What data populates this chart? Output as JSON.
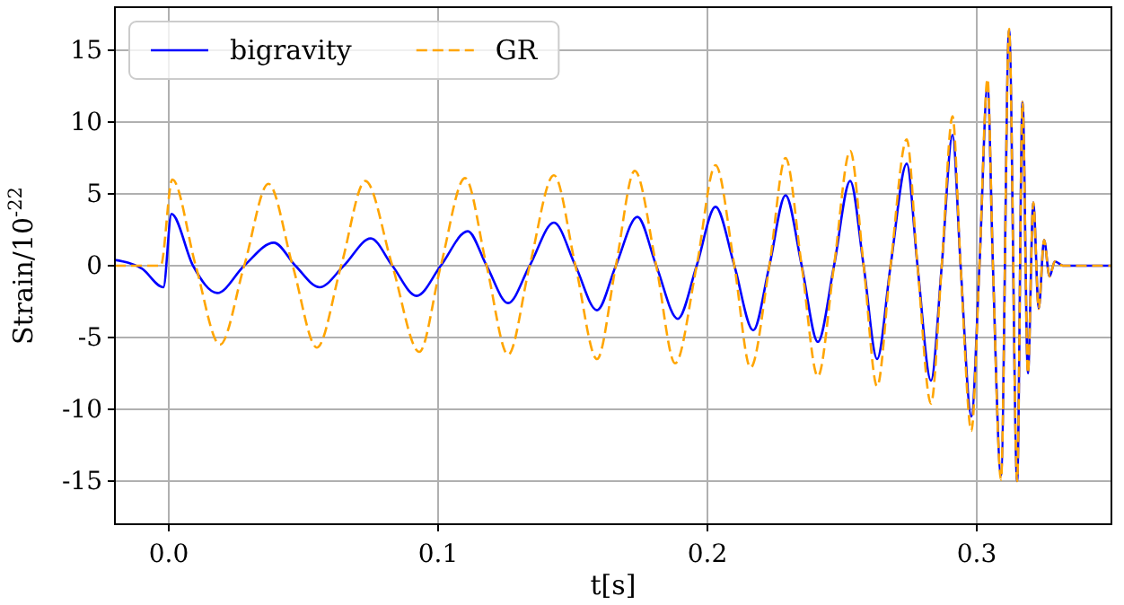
{
  "chart_data": {
    "type": "line",
    "xlabel": "t[s]",
    "ylabel": "Strain/10$^{-22}$",
    "xlim": [
      -0.02,
      0.35
    ],
    "ylim": [
      -18,
      18
    ],
    "xticks": [
      {
        "value": 0,
        "label": "0.0"
      },
      0.1,
      0.2,
      0.3
    ],
    "yticks": [
      -15,
      -10,
      -5,
      0,
      5,
      10,
      15
    ],
    "grid": true,
    "legend": "top left",
    "series": [
      {
        "name": "bigravity",
        "color": "#0000ff",
        "line_style": "solid",
        "x": [
          -0.02,
          -0.01,
          -0.002,
          0.001,
          0.009,
          0.018,
          0.028,
          0.039,
          0.047,
          0.056,
          0.065,
          0.075,
          0.083,
          0.092,
          0.101,
          0.111,
          0.118,
          0.126,
          0.134,
          0.143,
          0.151,
          0.159,
          0.166,
          0.174,
          0.181,
          0.189,
          0.196,
          0.203,
          0.21,
          0.217,
          0.223,
          0.229,
          0.235,
          0.241,
          0.247,
          0.253,
          0.258,
          0.263,
          0.268,
          0.274,
          0.278,
          0.283,
          0.287,
          0.291,
          0.294,
          0.298,
          0.301,
          0.304,
          0.306,
          0.309,
          0.312,
          0.315,
          0.317,
          0.319,
          0.321,
          0.323,
          0.325,
          0.327,
          0.329,
          0.332,
          0.35
        ],
        "values": [
          0.4,
          -0.2,
          -1.5,
          3.6,
          0,
          -1.9,
          0,
          1.6,
          0,
          -1.5,
          0,
          1.9,
          0,
          -2.1,
          0,
          2.4,
          0,
          -2.6,
          0,
          3.0,
          0,
          -3.1,
          0,
          3.4,
          0,
          -3.7,
          0,
          4.1,
          0,
          -4.5,
          0,
          4.9,
          0,
          -5.3,
          0,
          5.9,
          0,
          -6.5,
          0,
          7.1,
          0,
          -8,
          0,
          9.1,
          0,
          -10.5,
          0,
          12.5,
          0,
          -14.6,
          16.4,
          -15,
          11.4,
          -7.5,
          4.4,
          -3,
          1.8,
          -0.75,
          0.3,
          0,
          0
        ]
      },
      {
        "name": "GR",
        "color": "#ffa500",
        "line_style": "dashed",
        "x": [
          -0.02,
          -0.003,
          0.0013,
          0.01,
          0.019,
          0.028,
          0.037,
          0.046,
          0.055,
          0.064,
          0.073,
          0.083,
          0.093,
          0.101,
          0.11,
          0.118,
          0.126,
          0.134,
          0.143,
          0.151,
          0.159,
          0.166,
          0.173,
          0.181,
          0.188,
          0.196,
          0.203,
          0.21,
          0.216,
          0.223,
          0.229,
          0.235,
          0.241,
          0.247,
          0.253,
          0.258,
          0.263,
          0.268,
          0.274,
          0.278,
          0.283,
          0.287,
          0.291,
          0.294,
          0.298,
          0.301,
          0.304,
          0.306,
          0.309,
          0.312,
          0.315,
          0.317,
          0.319,
          0.321,
          0.323,
          0.325,
          0.327,
          0.329,
          0.332,
          0.35
        ],
        "values": [
          0,
          0,
          6.0,
          0,
          -5.5,
          0,
          5.7,
          0,
          -5.7,
          0,
          5.9,
          0,
          -6,
          0,
          6.1,
          0,
          -6.2,
          0,
          6.3,
          0,
          -6.5,
          0,
          6.6,
          0,
          -6.8,
          0,
          7.0,
          0,
          -7.1,
          0,
          7.5,
          0,
          -7.7,
          0,
          8.0,
          0,
          -8.4,
          0,
          8.8,
          0,
          -9.6,
          0,
          10.4,
          0,
          -11.5,
          0,
          13,
          0,
          -14.9,
          16.5,
          -15,
          11.4,
          -7.5,
          4.4,
          -3,
          1.8,
          -0.75,
          0.3,
          0,
          0
        ]
      }
    ]
  }
}
